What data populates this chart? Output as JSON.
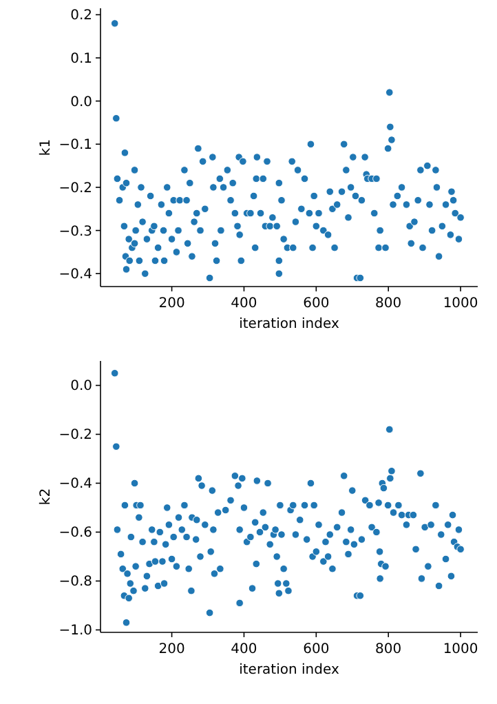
{
  "chart_data": [
    {
      "type": "scatter",
      "xlabel": "iteration index",
      "ylabel": "k1",
      "color": "#1f77b4",
      "marker": "circle",
      "xlim": [
        2.5,
        1047.5
      ],
      "xticks": [
        200,
        400,
        600,
        800,
        1000
      ],
      "ylim": [
        -0.43,
        0.215
      ],
      "yticks": [
        {
          "value": -0.4,
          "label": "−0.4"
        },
        {
          "value": -0.3,
          "label": "−0.3"
        },
        {
          "value": -0.2,
          "label": "−0.2"
        },
        {
          "value": -0.1,
          "label": "−0.1"
        },
        {
          "value": 0,
          "label": "0.0"
        },
        0.1,
        0.2
      ],
      "x": [
        42,
        46,
        49,
        55,
        64,
        70,
        68,
        72,
        74,
        74,
        81,
        83,
        90,
        97,
        100,
        97,
        106,
        110,
        115,
        119,
        126,
        131,
        141,
        145,
        151,
        154,
        162,
        171,
        177,
        179,
        187,
        192,
        200,
        205,
        213,
        218,
        222,
        235,
        241,
        244,
        250,
        256,
        262,
        269,
        273,
        279,
        286,
        292,
        305,
        313,
        315,
        320,
        324,
        333,
        336,
        343,
        354,
        363,
        369,
        375,
        382,
        386,
        388,
        392,
        397,
        408,
        418,
        427,
        431,
        434,
        436,
        446,
        453,
        459,
        464,
        472,
        479,
        491,
        497,
        497,
        497,
        504,
        510,
        520,
        533,
        536,
        543,
        549,
        559,
        568,
        581,
        585,
        590,
        594,
        600,
        607,
        620,
        633,
        638,
        645,
        651,
        658,
        671,
        677,
        683,
        689,
        696,
        702,
        709,
        713,
        722,
        726,
        735,
        739,
        742,
        754,
        761,
        767,
        773,
        777,
        792,
        799,
        803,
        805,
        809,
        813,
        825,
        837,
        850,
        859,
        863,
        872,
        882,
        889,
        895,
        908,
        914,
        921,
        931,
        934,
        940,
        949,
        959,
        972,
        975,
        980,
        985,
        995,
        1000
      ],
      "values": [
        0.18,
        -0.04,
        -0.18,
        -0.23,
        -0.2,
        -0.12,
        -0.29,
        -0.36,
        -0.19,
        -0.39,
        -0.32,
        -0.37,
        -0.34,
        -0.16,
        -0.3,
        -0.33,
        -0.24,
        -0.37,
        -0.2,
        -0.28,
        -0.4,
        -0.32,
        -0.22,
        -0.3,
        -0.29,
        -0.37,
        -0.34,
        -0.24,
        -0.3,
        -0.37,
        -0.2,
        -0.26,
        -0.32,
        -0.23,
        -0.35,
        -0.3,
        -0.23,
        -0.16,
        -0.23,
        -0.33,
        -0.19,
        -0.36,
        -0.28,
        -0.26,
        -0.11,
        -0.3,
        -0.14,
        -0.25,
        -0.41,
        -0.13,
        -0.2,
        -0.33,
        -0.37,
        -0.18,
        -0.3,
        -0.2,
        -0.16,
        -0.23,
        -0.19,
        -0.26,
        -0.29,
        -0.13,
        -0.31,
        -0.37,
        -0.14,
        -0.26,
        -0.26,
        -0.22,
        -0.34,
        -0.18,
        -0.13,
        -0.26,
        -0.18,
        -0.29,
        -0.14,
        -0.29,
        -0.27,
        -0.29,
        -0.19,
        -0.37,
        -0.4,
        -0.23,
        -0.32,
        -0.34,
        -0.14,
        -0.34,
        -0.28,
        -0.16,
        -0.25,
        -0.18,
        -0.26,
        -0.1,
        -0.34,
        -0.22,
        -0.29,
        -0.26,
        -0.3,
        -0.31,
        -0.21,
        -0.25,
        -0.34,
        -0.24,
        -0.21,
        -0.1,
        -0.16,
        -0.27,
        -0.2,
        -0.13,
        -0.22,
        -0.41,
        -0.41,
        -0.23,
        -0.13,
        -0.17,
        -0.18,
        -0.18,
        -0.26,
        -0.18,
        -0.34,
        -0.3,
        -0.34,
        -0.11,
        0.02,
        -0.06,
        -0.09,
        -0.24,
        -0.22,
        -0.2,
        -0.24,
        -0.29,
        -0.33,
        -0.28,
        -0.23,
        -0.16,
        -0.34,
        -0.15,
        -0.24,
        -0.3,
        -0.16,
        -0.2,
        -0.36,
        -0.29,
        -0.24,
        -0.31,
        -0.21,
        -0.23,
        -0.26,
        -0.32,
        -0.27
      ]
    },
    {
      "type": "scatter",
      "xlabel": "iteration index",
      "ylabel": "k2",
      "color": "#1f77b4",
      "marker": "circle",
      "xlim": [
        2.5,
        1047.5
      ],
      "xticks": [
        200,
        400,
        600,
        800,
        1000
      ],
      "ylim": [
        -1.01,
        0.1
      ],
      "yticks": [
        {
          "value": -1,
          "label": "−1.0"
        },
        {
          "value": -0.8,
          "label": "−0.8"
        },
        {
          "value": -0.6,
          "label": "−0.6"
        },
        {
          "value": -0.4,
          "label": "−0.4"
        },
        {
          "value": -0.2,
          "label": "−0.2"
        },
        {
          "value": 0,
          "label": "0.0"
        }
      ],
      "x": [
        42,
        46,
        49,
        59,
        64,
        68,
        70,
        74,
        77,
        81,
        85,
        87,
        94,
        97,
        100,
        102,
        109,
        113,
        119,
        126,
        131,
        138,
        145,
        151,
        154,
        162,
        167,
        174,
        179,
        183,
        187,
        192,
        200,
        205,
        213,
        219,
        228,
        235,
        241,
        247,
        254,
        256,
        267,
        269,
        274,
        279,
        283,
        292,
        305,
        308,
        312,
        315,
        318,
        328,
        334,
        349,
        363,
        375,
        384,
        388,
        388,
        395,
        400,
        408,
        418,
        423,
        431,
        434,
        436,
        444,
        453,
        459,
        466,
        472,
        482,
        487,
        491,
        494,
        497,
        500,
        504,
        510,
        517,
        523,
        529,
        536,
        543,
        555,
        568,
        574,
        585,
        590,
        594,
        600,
        607,
        620,
        626,
        633,
        638,
        645,
        658,
        671,
        677,
        683,
        689,
        696,
        700,
        705,
        713,
        722,
        726,
        736,
        748,
        754,
        767,
        773,
        776,
        777,
        780,
        783,
        787,
        792,
        799,
        803,
        805,
        809,
        814,
        828,
        837,
        850,
        856,
        869,
        876,
        889,
        892,
        901,
        910,
        918,
        931,
        940,
        946,
        959,
        965,
        974,
        978,
        982,
        991,
        995,
        1000
      ],
      "values": [
        0.05,
        -0.25,
        -0.59,
        -0.69,
        -0.75,
        -0.86,
        -0.49,
        -0.97,
        -0.77,
        -0.87,
        -0.81,
        -0.62,
        -0.84,
        -0.4,
        -0.74,
        -0.49,
        -0.54,
        -0.49,
        -0.64,
        -0.83,
        -0.78,
        -0.73,
        -0.59,
        -0.64,
        -0.72,
        -0.82,
        -0.6,
        -0.72,
        -0.81,
        -0.65,
        -0.5,
        -0.57,
        -0.71,
        -0.62,
        -0.74,
        -0.54,
        -0.59,
        -0.49,
        -0.62,
        -0.75,
        -0.84,
        -0.54,
        -0.63,
        -0.55,
        -0.38,
        -0.7,
        -0.41,
        -0.57,
        -0.93,
        -0.68,
        -0.43,
        -0.59,
        -0.77,
        -0.52,
        -0.75,
        -0.51,
        -0.47,
        -0.37,
        -0.41,
        -0.89,
        -0.59,
        -0.38,
        -0.5,
        -0.64,
        -0.62,
        -0.83,
        -0.56,
        -0.73,
        -0.39,
        -0.6,
        -0.52,
        -0.58,
        -0.4,
        -0.65,
        -0.61,
        -0.59,
        -0.7,
        -0.81,
        -0.85,
        -0.49,
        -0.61,
        -0.75,
        -0.81,
        -0.84,
        -0.51,
        -0.49,
        -0.61,
        -0.55,
        -0.49,
        -0.63,
        -0.4,
        -0.7,
        -0.49,
        -0.68,
        -0.57,
        -0.72,
        -0.64,
        -0.7,
        -0.61,
        -0.75,
        -0.58,
        -0.52,
        -0.37,
        -0.64,
        -0.69,
        -0.59,
        -0.43,
        -0.65,
        -0.86,
        -0.86,
        -0.63,
        -0.47,
        -0.49,
        -0.58,
        -0.6,
        -0.48,
        -0.68,
        -0.79,
        -0.73,
        -0.4,
        -0.42,
        -0.74,
        -0.49,
        -0.18,
        -0.38,
        -0.35,
        -0.52,
        -0.49,
        -0.53,
        -0.57,
        -0.53,
        -0.53,
        -0.67,
        -0.36,
        -0.79,
        -0.58,
        -0.74,
        -0.57,
        -0.49,
        -0.82,
        -0.61,
        -0.71,
        -0.57,
        -0.78,
        -0.53,
        -0.64,
        -0.66,
        -0.59,
        -0.67
      ]
    }
  ]
}
